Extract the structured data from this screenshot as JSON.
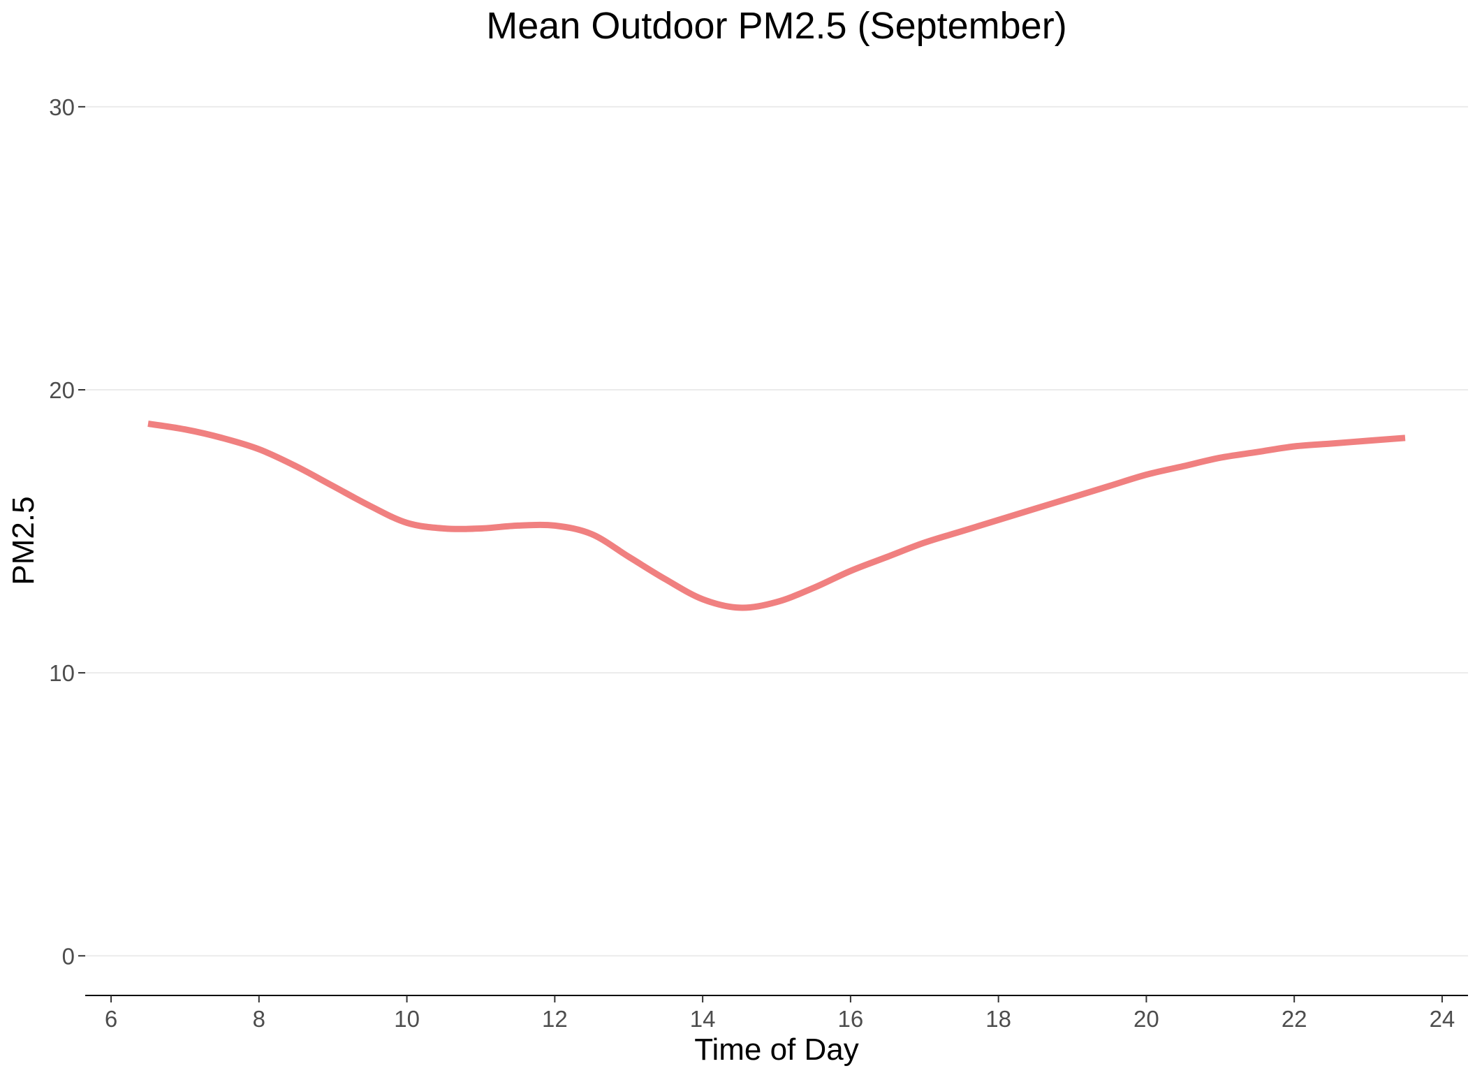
{
  "chart_data": {
    "type": "line",
    "title": "Mean Outdoor PM2.5 (September)",
    "xlabel": "Time of Day",
    "ylabel": "PM2.5",
    "xlim": [
      5.65,
      24.35
    ],
    "ylim": [
      -1.4,
      31.6
    ],
    "x_ticks": [
      6,
      8,
      10,
      12,
      14,
      16,
      18,
      20,
      22,
      24
    ],
    "y_ticks": [
      0,
      10,
      20,
      30
    ],
    "grid": "horizontal",
    "legend": "none",
    "series": [
      {
        "color": "#f08080",
        "x": [
          6.5,
          7.0,
          7.5,
          8.0,
          8.5,
          9.0,
          9.5,
          10.0,
          10.5,
          11.0,
          11.5,
          12.0,
          12.5,
          13.0,
          13.5,
          14.0,
          14.5,
          15.0,
          15.5,
          16.0,
          16.5,
          17.0,
          17.5,
          18.0,
          18.5,
          19.0,
          19.5,
          20.0,
          20.5,
          21.0,
          21.5,
          22.0,
          22.5,
          23.0,
          23.5
        ],
        "y": [
          18.8,
          18.6,
          18.3,
          17.9,
          17.3,
          16.6,
          15.9,
          15.3,
          15.1,
          15.1,
          15.2,
          15.2,
          14.9,
          14.1,
          13.3,
          12.6,
          12.3,
          12.5,
          13.0,
          13.6,
          14.1,
          14.6,
          15.0,
          15.4,
          15.8,
          16.2,
          16.6,
          17.0,
          17.3,
          17.6,
          17.8,
          18.0,
          18.1,
          18.2,
          18.3
        ]
      }
    ]
  }
}
